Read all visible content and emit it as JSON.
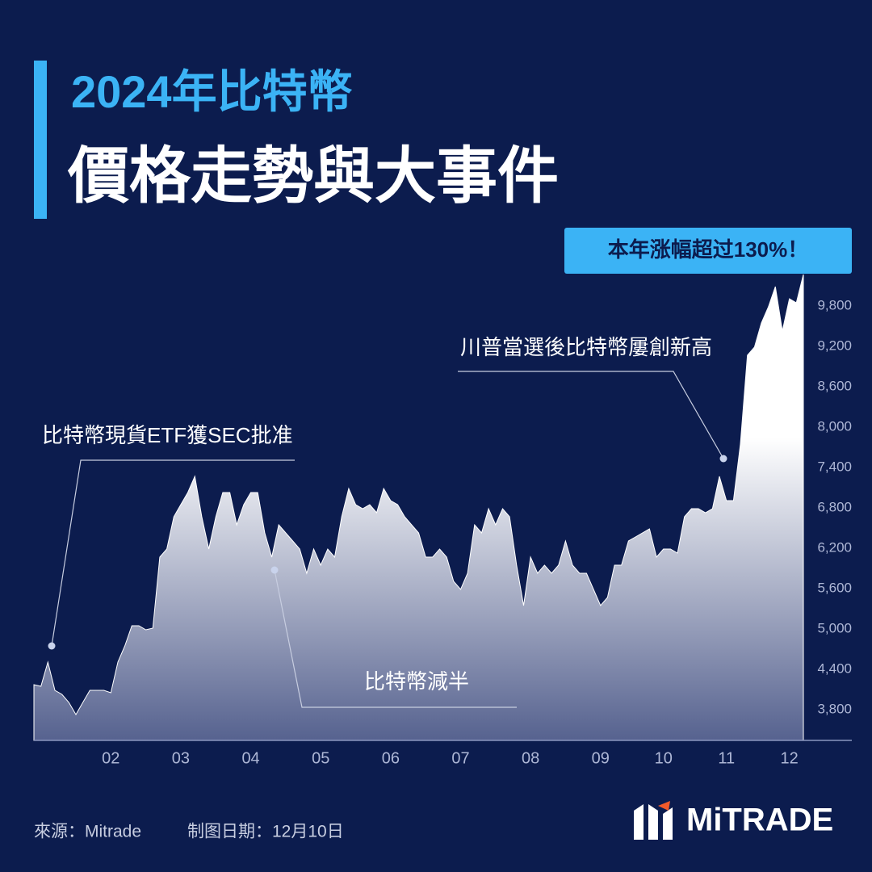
{
  "chart_data": {
    "type": "area",
    "title": "2024年比特幣",
    "subtitle": "價格走勢與大事件",
    "badge": "本年涨幅超过130%！",
    "annotations": [
      "比特幣現貨ETF獲SEC批准",
      "比特幣減半",
      "川普當選後比特幣屢創新高"
    ],
    "source": "來源：Mitrade",
    "date_note": "制图日期：12月10日",
    "brand": "MiTRADE",
    "categories": [
      null,
      null,
      null,
      null,
      null,
      null,
      null,
      null,
      null,
      null,
      null,
      "02",
      null,
      null,
      null,
      null,
      null,
      null,
      null,
      null,
      null,
      "03",
      null,
      null,
      null,
      null,
      null,
      null,
      null,
      null,
      null,
      "04",
      null,
      null,
      null,
      null,
      null,
      null,
      null,
      null,
      null,
      "05",
      null,
      null,
      null,
      null,
      null,
      null,
      null,
      null,
      null,
      "06",
      null,
      null,
      null,
      null,
      null,
      null,
      null,
      null,
      null,
      "07",
      null,
      null,
      null,
      null,
      null,
      null,
      null,
      null,
      null,
      "08",
      null,
      null,
      null,
      null,
      null,
      null,
      null,
      null,
      null,
      "09",
      null,
      null,
      null,
      null,
      null,
      null,
      null,
      null,
      "10",
      null,
      null,
      null,
      null,
      null,
      null,
      null,
      null,
      "11",
      null,
      null,
      null,
      null,
      null,
      null,
      null,
      null,
      "12",
      null,
      null
    ],
    "values": [
      4172,
      4148,
      4508,
      4088,
      4028,
      3908,
      3728,
      3908,
      4088,
      4088,
      4088,
      4052,
      4508,
      4748,
      5048,
      5048,
      4988,
      5012,
      6068,
      6188,
      6668,
      6848,
      7028,
      7268,
      6668,
      6188,
      6668,
      7028,
      7028,
      6548,
      6848,
      7028,
      7028,
      6428,
      6068,
      6548,
      6428,
      6308,
      6188,
      5828,
      6188,
      5948,
      6188,
      6068,
      6668,
      7088,
      6848,
      6788,
      6848,
      6728,
      7088,
      6908,
      6848,
      6668,
      6548,
      6428,
      6068,
      6068,
      6188,
      6068,
      5708,
      5588,
      5828,
      6548,
      6428,
      6788,
      6548,
      6788,
      6668,
      5948,
      5348,
      6068,
      5828,
      5948,
      5828,
      5948,
      6308,
      5948,
      5828,
      5828,
      5588,
      5348,
      5468,
      5948,
      5948,
      6308,
      6368,
      6428,
      6488,
      6068,
      6188,
      6188,
      6128,
      6668,
      6788,
      6788,
      6728,
      6788,
      7268,
      6908,
      6908,
      7748,
      9068,
      9188,
      9548,
      9788,
      10088,
      9428,
      9908,
      9848,
      10268
    ],
    "color": "#ffffff",
    "ylim": [
      3344,
      10268
    ],
    "yticks": [
      {
        "value": 3800,
        "label": "3,800"
      },
      {
        "value": 4400,
        "label": "4,400"
      },
      {
        "value": 5000,
        "label": "5,000"
      },
      {
        "value": 5600,
        "label": "5,600"
      },
      {
        "value": 6200,
        "label": "6,200"
      },
      {
        "value": 6800,
        "label": "6,800"
      },
      {
        "value": 7400,
        "label": "7,400"
      },
      {
        "value": 8000,
        "label": "8,000"
      },
      {
        "value": 8600,
        "label": "8,600"
      },
      {
        "value": 9200,
        "label": "9,200"
      },
      {
        "value": 9800,
        "label": "9,800"
      }
    ]
  }
}
